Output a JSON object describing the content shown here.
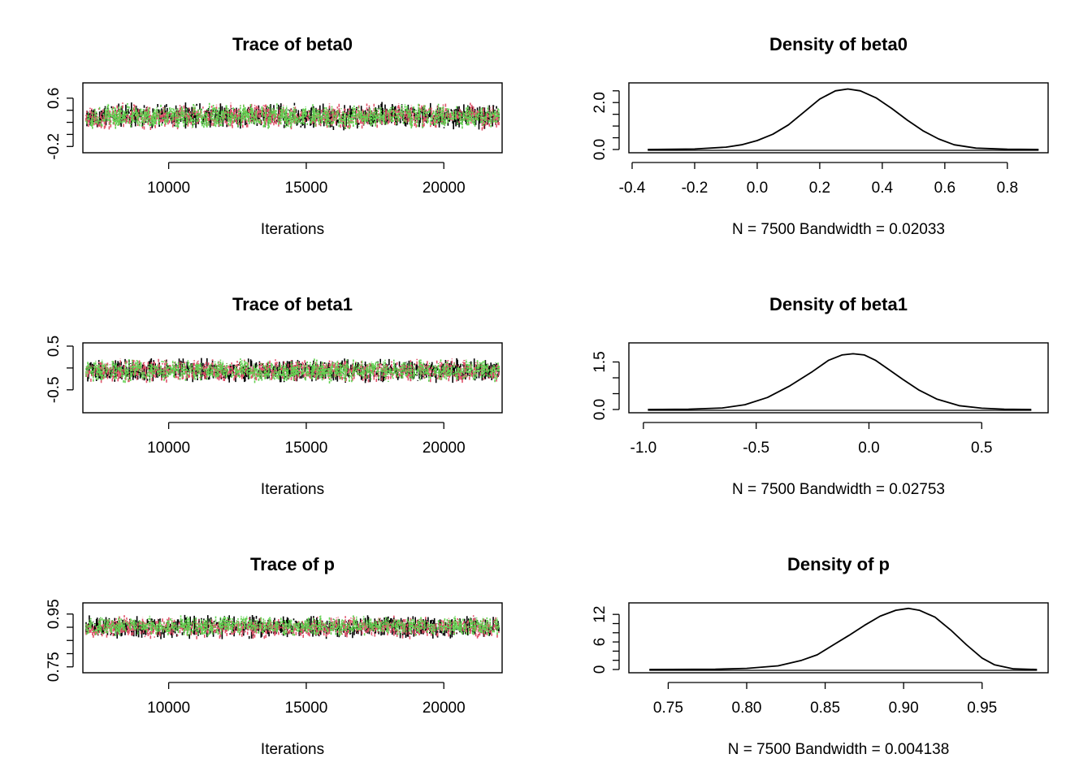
{
  "colors": {
    "chain1": "#000000",
    "chain2": "#DF536B",
    "chain3": "#61D04F",
    "axis": "#000000"
  },
  "chart_data": [
    {
      "type": "line",
      "panel": "trace",
      "title": "Trace of beta0",
      "xlabel": "Iterations",
      "ylabel": "",
      "xlim": [
        7000,
        22000
      ],
      "ylim": [
        -0.25,
        0.8
      ],
      "xticks": [
        10000,
        15000,
        20000
      ],
      "xtick_labels": [
        "10000",
        "15000",
        "20000"
      ],
      "yticks": [
        -0.2,
        0.6
      ],
      "ytick_labels": [
        "-0.2",
        "0.6"
      ],
      "yminor": [
        0.0,
        0.2,
        0.4
      ],
      "series": [
        {
          "chain": 1,
          "center": 0.3,
          "spread": 0.16,
          "min": -0.12,
          "max": 0.72,
          "seed": 11
        },
        {
          "chain": 2,
          "center": 0.3,
          "spread": 0.16,
          "min": -0.08,
          "max": 0.75,
          "seed": 23
        },
        {
          "chain": 3,
          "center": 0.3,
          "spread": 0.16,
          "min": -0.05,
          "max": 0.7,
          "seed": 37
        }
      ]
    },
    {
      "type": "line",
      "panel": "density",
      "title": "Density of beta0",
      "xlabel": "N = 7500   Bandwidth = 0.02033",
      "xlim": [
        -0.4,
        0.92
      ],
      "ylim": [
        0,
        2.7
      ],
      "xticks": [
        -0.4,
        -0.2,
        0.0,
        0.2,
        0.4,
        0.6,
        0.8
      ],
      "xtick_labels": [
        "-0.4",
        "-0.2",
        "0.0",
        "0.2",
        "0.4",
        "0.6",
        "0.8"
      ],
      "yticks": [
        0.0,
        2.0
      ],
      "ytick_labels": [
        "0.0",
        "2.0"
      ],
      "yminor": [
        0.5,
        1.0,
        1.5,
        2.5
      ],
      "x": [
        -0.35,
        -0.2,
        -0.1,
        -0.05,
        0.0,
        0.05,
        0.1,
        0.15,
        0.2,
        0.25,
        0.29,
        0.33,
        0.38,
        0.43,
        0.48,
        0.53,
        0.58,
        0.63,
        0.7,
        0.8,
        0.9
      ],
      "y": [
        0.0,
        0.02,
        0.1,
        0.2,
        0.38,
        0.65,
        1.05,
        1.6,
        2.15,
        2.5,
        2.58,
        2.5,
        2.2,
        1.75,
        1.25,
        0.8,
        0.45,
        0.2,
        0.06,
        0.01,
        0.0
      ]
    },
    {
      "type": "line",
      "panel": "trace",
      "title": "Trace of beta1",
      "xlabel": "Iterations",
      "ylabel": "",
      "xlim": [
        7000,
        22000
      ],
      "ylim": [
        -0.95,
        0.5
      ],
      "xticks": [
        10000,
        15000,
        20000
      ],
      "xtick_labels": [
        "10000",
        "15000",
        "20000"
      ],
      "yticks": [
        -0.5,
        0.5
      ],
      "ytick_labels": [
        "-0.5",
        "0.5"
      ],
      "yminor": [
        0.0
      ],
      "series": [
        {
          "chain": 1,
          "center": -0.06,
          "spread": 0.2,
          "min": -0.72,
          "max": 0.45,
          "seed": 5
        },
        {
          "chain": 2,
          "center": -0.06,
          "spread": 0.2,
          "min": -0.9,
          "max": 0.42,
          "seed": 17
        },
        {
          "chain": 3,
          "center": -0.06,
          "spread": 0.2,
          "min": -0.7,
          "max": 0.44,
          "seed": 29
        }
      ]
    },
    {
      "type": "line",
      "panel": "density",
      "title": "Density of beta1",
      "xlabel": "N = 7500   Bandwidth = 0.02753",
      "xlim": [
        -1.05,
        0.78
      ],
      "ylim": [
        0,
        2.0
      ],
      "xticks": [
        -1.0,
        -0.5,
        0.0,
        0.5
      ],
      "xtick_labels": [
        "-1.0",
        "-0.5",
        "0.0",
        "0.5"
      ],
      "yticks": [
        0.0,
        1.5
      ],
      "ytick_labels": [
        "0.0",
        "1.5"
      ],
      "yminor": [
        0.5,
        1.0
      ],
      "x": [
        -0.98,
        -0.8,
        -0.65,
        -0.55,
        -0.45,
        -0.35,
        -0.25,
        -0.18,
        -0.12,
        -0.07,
        -0.02,
        0.03,
        0.08,
        0.15,
        0.22,
        0.3,
        0.4,
        0.5,
        0.6,
        0.72
      ],
      "y": [
        0.0,
        0.01,
        0.05,
        0.15,
        0.38,
        0.75,
        1.2,
        1.55,
        1.72,
        1.76,
        1.72,
        1.55,
        1.3,
        0.95,
        0.62,
        0.33,
        0.12,
        0.04,
        0.01,
        0.0
      ]
    },
    {
      "type": "line",
      "panel": "trace",
      "title": "Trace of p",
      "xlabel": "Iterations",
      "ylabel": "",
      "xlim": [
        7000,
        22000
      ],
      "ylim": [
        0.74,
        0.98
      ],
      "xticks": [
        10000,
        15000,
        20000
      ],
      "xtick_labels": [
        "10000",
        "15000",
        "20000"
      ],
      "yticks": [
        0.75,
        0.95
      ],
      "ytick_labels": [
        "0.75",
        "0.95"
      ],
      "yminor": [
        0.8,
        0.85,
        0.9
      ],
      "series": [
        {
          "chain": 1,
          "center": 0.9,
          "spread": 0.032,
          "min": 0.77,
          "max": 0.96,
          "seed": 41
        },
        {
          "chain": 2,
          "center": 0.9,
          "spread": 0.032,
          "min": 0.752,
          "max": 0.96,
          "seed": 53
        },
        {
          "chain": 3,
          "center": 0.905,
          "spread": 0.028,
          "min": 0.78,
          "max": 0.96,
          "seed": 67
        }
      ]
    },
    {
      "type": "line",
      "panel": "density",
      "title": "Density of p",
      "xlabel": "N = 7500   Bandwidth = 0.004138",
      "xlim": [
        0.727,
        0.99
      ],
      "ylim": [
        0,
        13.8
      ],
      "xticks": [
        0.75,
        0.8,
        0.85,
        0.9,
        0.95
      ],
      "xtick_labels": [
        "0.75",
        "0.80",
        "0.85",
        "0.90",
        "0.95"
      ],
      "yticks": [
        0,
        6,
        12
      ],
      "ytick_labels": [
        "0",
        "6",
        "12"
      ],
      "yminor": [
        2,
        4,
        8,
        10
      ],
      "x": [
        0.738,
        0.78,
        0.8,
        0.82,
        0.835,
        0.845,
        0.855,
        0.865,
        0.875,
        0.885,
        0.895,
        0.903,
        0.91,
        0.92,
        0.93,
        0.94,
        0.95,
        0.958,
        0.97,
        0.985
      ],
      "y": [
        0.0,
        0.05,
        0.25,
        0.8,
        2.0,
        3.2,
        5.3,
        7.4,
        9.6,
        11.6,
        12.9,
        13.3,
        12.9,
        11.4,
        8.6,
        5.4,
        2.5,
        1.0,
        0.15,
        0.0
      ]
    }
  ]
}
